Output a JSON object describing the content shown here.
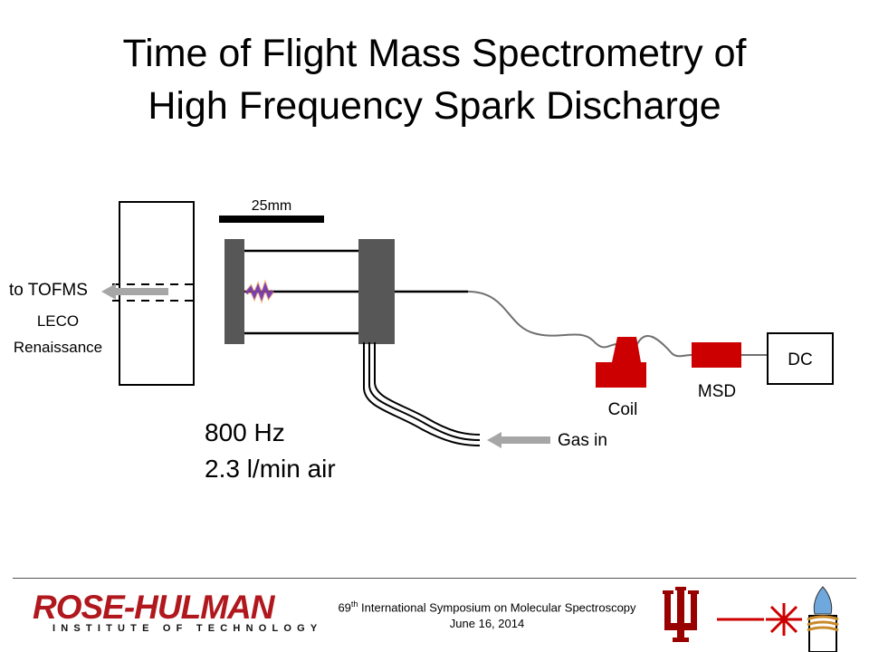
{
  "slide": {
    "title_line1": "Time of Flight Mass Spectrometry of",
    "title_line2": "High Frequency Spark Discharge"
  },
  "diagram": {
    "scale_bar_label": "25mm",
    "outlet_label": "to TOFMS",
    "instrument_label_line1": "LECO",
    "instrument_label_line2": "Renaissance",
    "coil_label": "Coil",
    "msd_label": "MSD",
    "dc_label": "DC",
    "gas_label": "Gas in",
    "colors": {
      "electrode": "#575757",
      "coil_msd": "#cc0000",
      "arrow": "#a6a6a6",
      "spark": "#7a3fb3"
    }
  },
  "parameters": {
    "frequency": "800 Hz",
    "flow": "2.3 l/min air"
  },
  "footer": {
    "logo_main": "ROSE-HULMAN",
    "logo_sub": "INSTITUTE OF TECHNOLOGY",
    "symposium_number": "69",
    "symposium_suffix": "th",
    "symposium_name": " International Symposium on Molecular Spectroscopy",
    "date": "June 16, 2014"
  }
}
